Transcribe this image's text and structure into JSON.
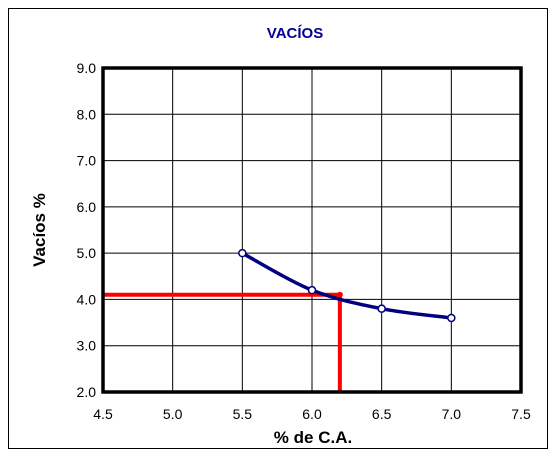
{
  "chart_data": {
    "type": "line",
    "title": "VACÍOS",
    "xlabel": "% de C.A.",
    "ylabel": "Vacíos %",
    "xlim": [
      4.5,
      7.5
    ],
    "ylim": [
      2.0,
      9.0
    ],
    "x_ticks": [
      "4.5",
      "5.0",
      "5.5",
      "6.0",
      "6.5",
      "7.0",
      "7.5"
    ],
    "y_ticks": [
      "2.0",
      "3.0",
      "4.0",
      "5.0",
      "6.0",
      "7.0",
      "8.0",
      "9.0"
    ],
    "grid": true,
    "series": [
      {
        "x": [
          5.5,
          6.0,
          6.5,
          7.0
        ],
        "y": [
          5.0,
          4.2,
          3.8,
          3.6
        ],
        "color": "#000080"
      }
    ],
    "reference": {
      "x": 6.2,
      "y": 4.1,
      "color": "#ff0000"
    },
    "colors": {
      "title": "#000099",
      "series": "#000080",
      "reference": "#ff0000"
    }
  }
}
